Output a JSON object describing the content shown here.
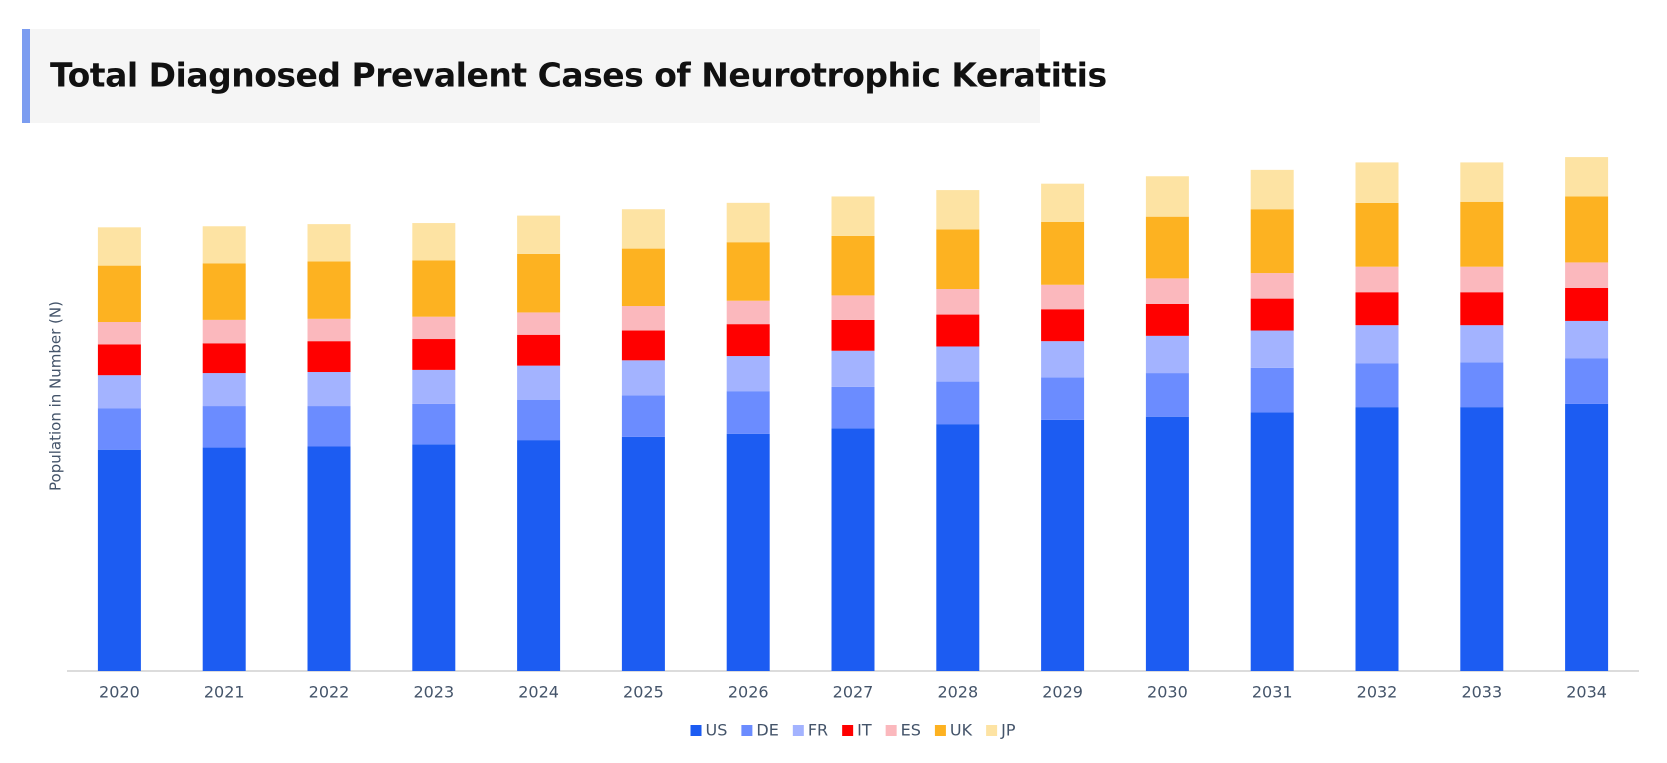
{
  "chart_data": {
    "type": "stacked_bar",
    "title": "Total Diagnosed Prevalent Cases of Neurotrophic Keratitis",
    "y_label": "Population in Number (N)",
    "categories": [
      "2020",
      "2021",
      "2022",
      "2023",
      "2024",
      "2025",
      "2026",
      "2027",
      "2028",
      "2029",
      "2030",
      "2031",
      "2032",
      "2033",
      "2034"
    ],
    "ylim": [
      0,
      500
    ],
    "series": [
      {
        "name": "US",
        "color": "#1c5cf2",
        "values": [
          208,
          210,
          211,
          213,
          217,
          220,
          223,
          228,
          232,
          236,
          239,
          243,
          248,
          248,
          251
        ]
      },
      {
        "name": "DE",
        "color": "#6b8cff",
        "values": [
          39,
          39,
          38,
          38,
          38,
          39,
          40,
          39,
          40,
          40,
          41,
          42,
          41,
          42,
          43
        ]
      },
      {
        "name": "FR",
        "color": "#a3b3ff",
        "values": [
          31,
          31,
          32,
          32,
          32,
          33,
          33,
          34,
          33,
          34,
          35,
          35,
          36,
          35,
          35
        ]
      },
      {
        "name": "IT",
        "color": "#ff0000",
        "values": [
          29,
          28,
          29,
          29,
          29,
          28,
          30,
          29,
          30,
          30,
          30,
          30,
          31,
          31,
          31
        ]
      },
      {
        "name": "ES",
        "color": "#fbb8bd",
        "values": [
          21,
          22,
          21,
          21,
          21,
          23,
          22,
          23,
          24,
          23,
          24,
          24,
          24,
          24,
          24
        ]
      },
      {
        "name": "UK",
        "color": "#fdb221",
        "values": [
          53,
          53,
          54,
          53,
          55,
          54,
          55,
          56,
          56,
          59,
          58,
          60,
          60,
          61,
          62
        ]
      },
      {
        "name": "JP",
        "color": "#fde3a3",
        "values": [
          36,
          35,
          35,
          35,
          36,
          37,
          37,
          37,
          37,
          36,
          38,
          37,
          38,
          37,
          37
        ]
      }
    ]
  }
}
